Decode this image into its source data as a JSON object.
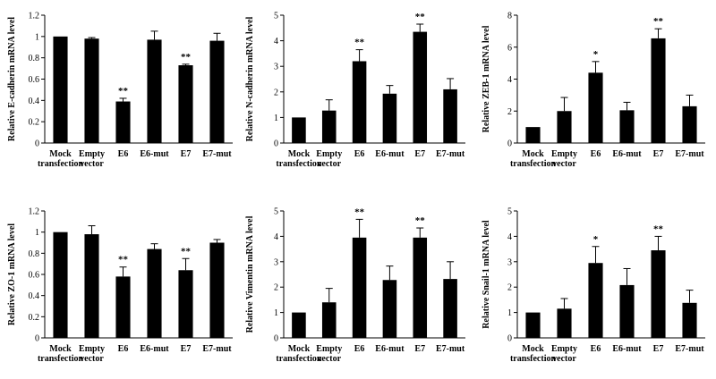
{
  "figure": {
    "panels": 6,
    "colors": {
      "bar": "#000000",
      "axis": "#000000",
      "background": "#ffffff"
    }
  },
  "chart_data": [
    {
      "type": "bar",
      "ylabel": "Relative E-cadherin mRNA level",
      "categories": [
        "Mock transfection",
        "Empty vector",
        "E6",
        "E6-mut",
        "E7",
        "E7-mut"
      ],
      "category_lines": [
        [
          "Mock",
          "transfection"
        ],
        [
          "Empty",
          "vector"
        ],
        [
          "E6"
        ],
        [
          "E6-mut"
        ],
        [
          "E7"
        ],
        [
          "E7-mut"
        ]
      ],
      "values": [
        1.0,
        0.98,
        0.39,
        0.97,
        0.73,
        0.96
      ],
      "errors": [
        0,
        0.01,
        0.03,
        0.08,
        0.01,
        0.07
      ],
      "significance": [
        "",
        "",
        "**",
        "",
        "**",
        ""
      ],
      "ylim": [
        0,
        1.2
      ],
      "yticks": [
        "0",
        "0.2",
        "0.4",
        "0.6",
        "0.8",
        "1",
        "1.2"
      ]
    },
    {
      "type": "bar",
      "ylabel": "Relative N-cadherin mRNA level",
      "categories": [
        "Mock transfection",
        "Empty vector",
        "E6",
        "E6-mut",
        "E7",
        "E7-mut"
      ],
      "category_lines": [
        [
          "Mock",
          "transfection"
        ],
        [
          "Empty",
          "vector"
        ],
        [
          "E6"
        ],
        [
          "E6-mut"
        ],
        [
          "E7"
        ],
        [
          "E7-mut"
        ]
      ],
      "values": [
        1.0,
        1.27,
        3.2,
        1.93,
        4.35,
        2.1
      ],
      "errors": [
        0,
        0.42,
        0.45,
        0.32,
        0.3,
        0.42
      ],
      "significance": [
        "",
        "",
        "**",
        "",
        "**",
        ""
      ],
      "ylim": [
        0,
        5
      ],
      "yticks": [
        "0",
        "1",
        "2",
        "3",
        "4",
        "5"
      ]
    },
    {
      "type": "bar",
      "ylabel": "Relative ZEB-1 mRNA level",
      "categories": [
        "Mock transfection",
        "Empty vector",
        "E6",
        "E6-mut",
        "E7",
        "E7-mut"
      ],
      "category_lines": [
        [
          "Mock",
          "transfection"
        ],
        [
          "Empty",
          "vector"
        ],
        [
          "E6"
        ],
        [
          "E6-mut"
        ],
        [
          "E7"
        ],
        [
          "E7-mut"
        ]
      ],
      "values": [
        1.0,
        2.0,
        4.4,
        2.05,
        6.55,
        2.3
      ],
      "errors": [
        0,
        0.85,
        0.7,
        0.5,
        0.6,
        0.7
      ],
      "significance": [
        "",
        "",
        "*",
        "",
        "**",
        ""
      ],
      "ylim": [
        0,
        8
      ],
      "yticks": [
        "0",
        "2",
        "4",
        "6",
        "8"
      ]
    },
    {
      "type": "bar",
      "ylabel": "Relative ZO-1 mRNA level",
      "categories": [
        "Mock transfection",
        "Empty vector",
        "E6",
        "E6-mut",
        "E7",
        "E7-mut"
      ],
      "category_lines": [
        [
          "Mock",
          "transfection"
        ],
        [
          "Empty",
          "vector"
        ],
        [
          "E6"
        ],
        [
          "E6-mut"
        ],
        [
          "E7"
        ],
        [
          "E7-mut"
        ]
      ],
      "values": [
        1.0,
        0.98,
        0.58,
        0.84,
        0.64,
        0.9
      ],
      "errors": [
        0,
        0.08,
        0.09,
        0.05,
        0.11,
        0.03
      ],
      "significance": [
        "",
        "",
        "**",
        "",
        "**",
        ""
      ],
      "ylim": [
        0,
        1.2
      ],
      "yticks": [
        "0",
        "0.2",
        "0.4",
        "0.6",
        "0.8",
        "1",
        "1.2"
      ]
    },
    {
      "type": "bar",
      "ylabel": "Relative Vimentin mRNA level",
      "categories": [
        "Mock transfection",
        "Empty vector",
        "E6",
        "E6-mut",
        "E7",
        "E7-mut"
      ],
      "category_lines": [
        [
          "Mock",
          "transfection"
        ],
        [
          "Empty",
          "vector"
        ],
        [
          "E6"
        ],
        [
          "E6-mut"
        ],
        [
          "E7"
        ],
        [
          "E7-mut"
        ]
      ],
      "values": [
        1.0,
        1.4,
        3.95,
        2.28,
        3.95,
        2.32
      ],
      "errors": [
        0,
        0.55,
        0.72,
        0.55,
        0.38,
        0.68
      ],
      "significance": [
        "",
        "",
        "**",
        "",
        "**",
        ""
      ],
      "ylim": [
        0,
        5
      ],
      "yticks": [
        "0",
        "1",
        "2",
        "3",
        "4",
        "5"
      ]
    },
    {
      "type": "bar",
      "ylabel": "Relative Snail-1 mRNA level",
      "categories": [
        "Mock transfection",
        "Empty vector",
        "E6",
        "E6-mut",
        "E7",
        "E7-mut"
      ],
      "category_lines": [
        [
          "Mock",
          "transfection"
        ],
        [
          "Empty",
          "vector"
        ],
        [
          "E6"
        ],
        [
          "E6-mut"
        ],
        [
          "E7"
        ],
        [
          "E7-mut"
        ]
      ],
      "values": [
        1.0,
        1.15,
        2.95,
        2.08,
        3.45,
        1.38
      ],
      "errors": [
        0,
        0.4,
        0.65,
        0.65,
        0.55,
        0.5
      ],
      "significance": [
        "",
        "",
        "*",
        "",
        "**",
        ""
      ],
      "ylim": [
        0,
        5
      ],
      "yticks": [
        "0",
        "1",
        "2",
        "3",
        "4",
        "5"
      ]
    }
  ]
}
